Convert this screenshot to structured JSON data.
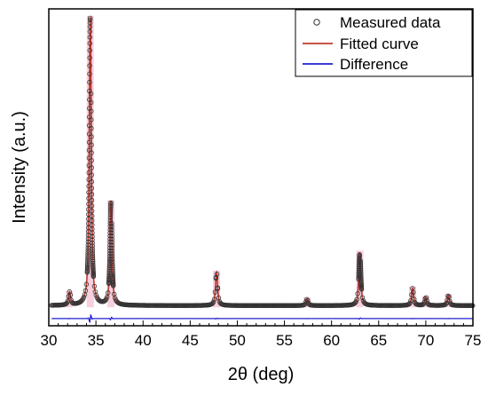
{
  "chart_data": {
    "type": "line",
    "xlabel": "2θ (deg)",
    "ylabel": "Intensity (a.u.)",
    "xlim": [
      30,
      75
    ],
    "ylim": [
      -0.06,
      1.04
    ],
    "y_ticks_shown": false,
    "x_ticks": [
      30,
      35,
      40,
      45,
      50,
      55,
      60,
      65,
      70,
      75
    ],
    "legend_position": "top-right",
    "colors": {
      "measured": "#333333",
      "fitted": "#c0392b",
      "difference": "#1f1fd0",
      "highlight": "#f2a8c4"
    },
    "peaks": [
      {
        "x": 32.2,
        "height": 0.045
      },
      {
        "x": 34.4,
        "height": 1.0
      },
      {
        "x": 36.6,
        "height": 0.36
      },
      {
        "x": 47.8,
        "height": 0.115
      },
      {
        "x": 57.4,
        "height": 0.022
      },
      {
        "x": 63.0,
        "height": 0.185
      },
      {
        "x": 68.6,
        "height": 0.06
      },
      {
        "x": 70.0,
        "height": 0.028
      },
      {
        "x": 72.4,
        "height": 0.035
      }
    ],
    "baseline": 0.01,
    "difference_level": -0.035,
    "series": [
      {
        "name": "Measured data",
        "style": "open-circles"
      },
      {
        "name": "Fitted curve",
        "style": "line"
      },
      {
        "name": "Difference",
        "style": "line"
      }
    ]
  }
}
